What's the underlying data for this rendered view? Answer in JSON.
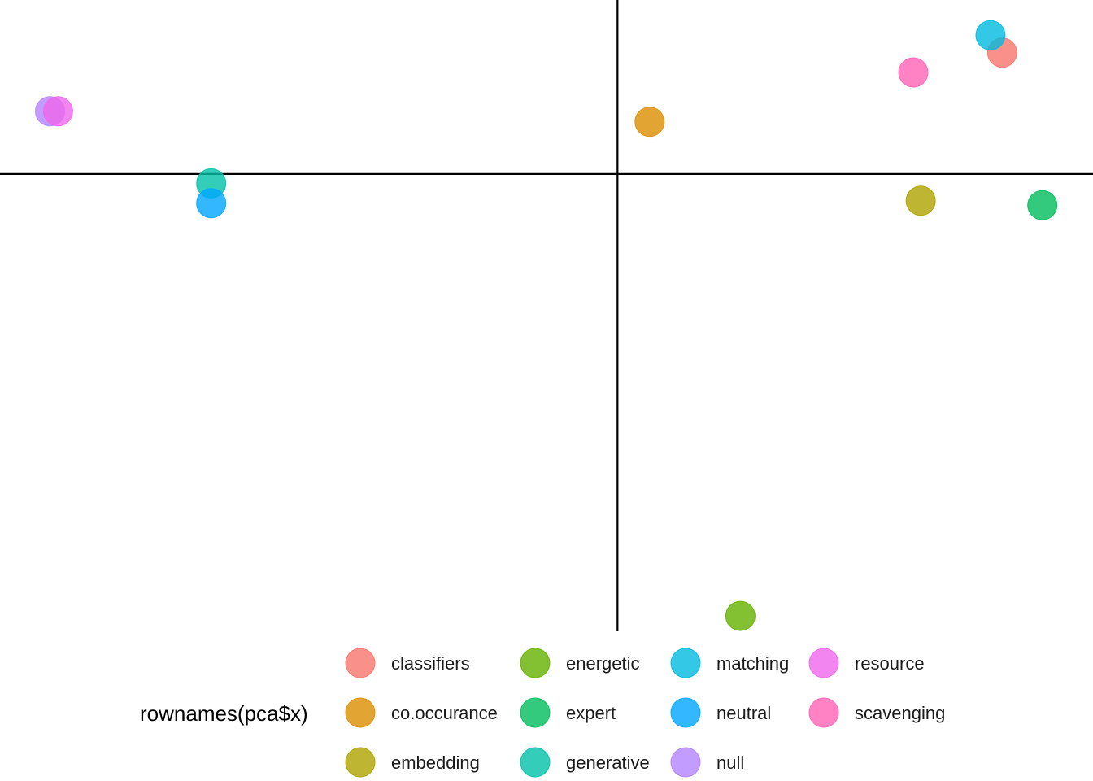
{
  "chart_data": {
    "type": "scatter",
    "title": "",
    "xlabel": "",
    "ylabel": "",
    "xlim": [
      -1.0,
      0.77
    ],
    "ylim": [
      -1.13,
      0.43
    ],
    "axes_lines_at": {
      "x": 0,
      "y": 0
    },
    "grid": false,
    "legend_title": "rownames(pca$x)",
    "legend_position": "bottom",
    "series": [
      {
        "name": "classifiers",
        "color": "#F8766D",
        "x": 0.623,
        "y": 0.3
      },
      {
        "name": "co.occurance",
        "color": "#DB8E00",
        "x": 0.052,
        "y": 0.129
      },
      {
        "name": "embedding",
        "color": "#AEA200",
        "x": 0.491,
        "y": -0.066
      },
      {
        "name": "energetic",
        "color": "#64B200",
        "x": 0.199,
        "y": -1.092
      },
      {
        "name": "expert",
        "color": "#00BD5C",
        "x": 0.688,
        "y": -0.077
      },
      {
        "name": "generative",
        "color": "#00C1A7",
        "x": -0.658,
        "y": -0.023
      },
      {
        "name": "matching",
        "color": "#00BADE",
        "x": 0.604,
        "y": 0.343
      },
      {
        "name": "neutral",
        "color": "#00A6FF",
        "x": -0.658,
        "y": -0.072
      },
      {
        "name": "null",
        "color": "#B385FF",
        "x": -0.919,
        "y": 0.155
      },
      {
        "name": "resource",
        "color": "#EF67EB",
        "x": -0.906,
        "y": 0.155
      },
      {
        "name": "scavenging",
        "color": "#FF63B6",
        "x": 0.479,
        "y": 0.251
      }
    ]
  }
}
